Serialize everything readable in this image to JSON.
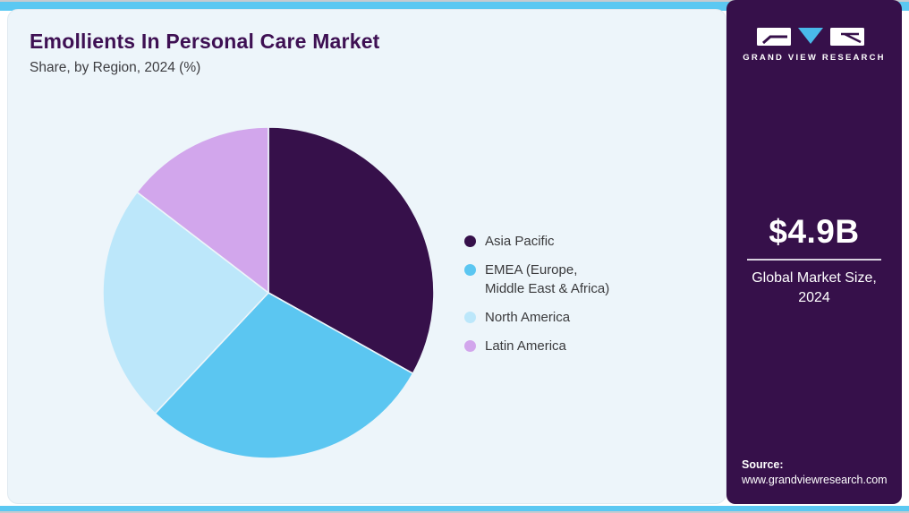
{
  "header": {
    "title": "Emollients In Personal Care Market",
    "subtitle": "Share, by Region, 2024 (%)"
  },
  "chart_data": {
    "type": "pie",
    "title": "Emollients In Personal Care Market Share, by Region, 2024 (%)",
    "units": "%",
    "categories": [
      "Asia Pacific",
      "EMEA (Europe, Middle East & Africa)",
      "North America",
      "Latin America"
    ],
    "values": [
      33.1,
      28.9,
      23.4,
      14.6
    ],
    "colors": [
      "#36104a",
      "#5bc6f1",
      "#bce7fa",
      "#d2a6ec"
    ],
    "start_angle_deg": 0,
    "direction": "clockwise",
    "legend_position": "right",
    "data_labels": "none"
  },
  "legend": {
    "items": [
      {
        "label": "Asia Pacific",
        "color": "#36104a"
      },
      {
        "label": "EMEA (Europe,\nMiddle East & Africa)",
        "color": "#5bc6f1"
      },
      {
        "label": "North America",
        "color": "#bce7fa"
      },
      {
        "label": "Latin America",
        "color": "#d2a6ec"
      }
    ]
  },
  "sidebar": {
    "logo_text": "GRAND VIEW RESEARCH",
    "stat_value": "$4.9B",
    "stat_label": "Global Market Size, 2024",
    "source_label": "Source:",
    "source_url": "www.grandviewresearch.com"
  },
  "theme": {
    "accent_cyan": "#5bc8f2",
    "card_background": "#edf5fa",
    "sidebar_background": "#36104a",
    "title_color": "#3e1053",
    "logo_triangle_color": "#49b9e9"
  }
}
